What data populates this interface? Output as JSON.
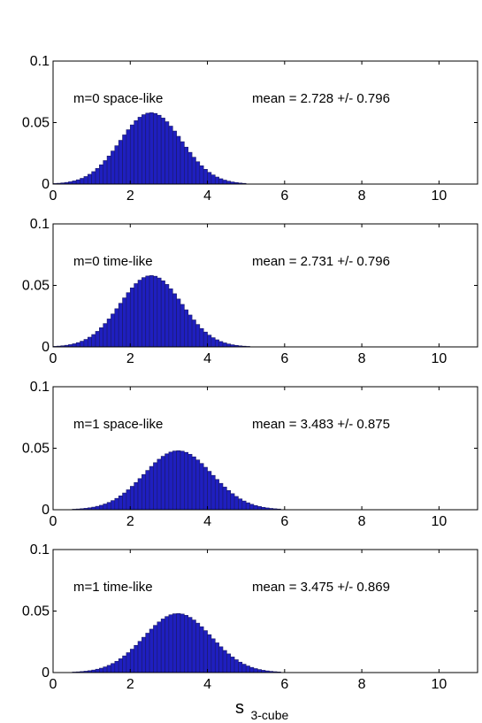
{
  "chart_data": [
    {
      "type": "bar",
      "annotation_left": "m=0 space-like",
      "annotation_right": "mean = 2.728 +/- 0.796",
      "mean": 2.728,
      "std": 0.796,
      "peak": 0.058,
      "xlim": [
        0,
        11
      ],
      "ylim": [
        0,
        0.1
      ],
      "xticks": [
        "0",
        "2",
        "4",
        "6",
        "8",
        "10"
      ],
      "yticks": [
        "0",
        "0.05",
        "0.1"
      ],
      "bar_color": "#1f1fbf"
    },
    {
      "type": "bar",
      "annotation_left": "m=0 time-like",
      "annotation_right": "mean = 2.731 +/- 0.796",
      "mean": 2.731,
      "std": 0.796,
      "peak": 0.058,
      "xlim": [
        0,
        11
      ],
      "ylim": [
        0,
        0.1
      ],
      "xticks": [
        "0",
        "2",
        "4",
        "6",
        "8",
        "10"
      ],
      "yticks": [
        "0",
        "0.05",
        "0.1"
      ],
      "bar_color": "#1f1fbf"
    },
    {
      "type": "bar",
      "annotation_left": "m=1 space-like",
      "annotation_right": "mean = 3.483 +/- 0.875",
      "mean": 3.483,
      "std": 0.875,
      "peak": 0.048,
      "xlim": [
        0,
        11
      ],
      "ylim": [
        0,
        0.1
      ],
      "xticks": [
        "0",
        "2",
        "4",
        "6",
        "8",
        "10"
      ],
      "yticks": [
        "0",
        "0.05",
        "0.1"
      ],
      "bar_color": "#1f1fbf"
    },
    {
      "type": "bar",
      "annotation_left": "m=1 time-like",
      "annotation_right": "mean = 3.475 +/- 0.869",
      "mean": 3.475,
      "std": 0.869,
      "peak": 0.048,
      "xlim": [
        0,
        11
      ],
      "ylim": [
        0,
        0.1
      ],
      "xticks": [
        "0",
        "2",
        "4",
        "6",
        "8",
        "10"
      ],
      "yticks": [
        "0",
        "0.05",
        "0.1"
      ],
      "bar_color": "#1f1fbf"
    }
  ],
  "xlabel": {
    "main": "s",
    "subscript": "3-cube"
  }
}
